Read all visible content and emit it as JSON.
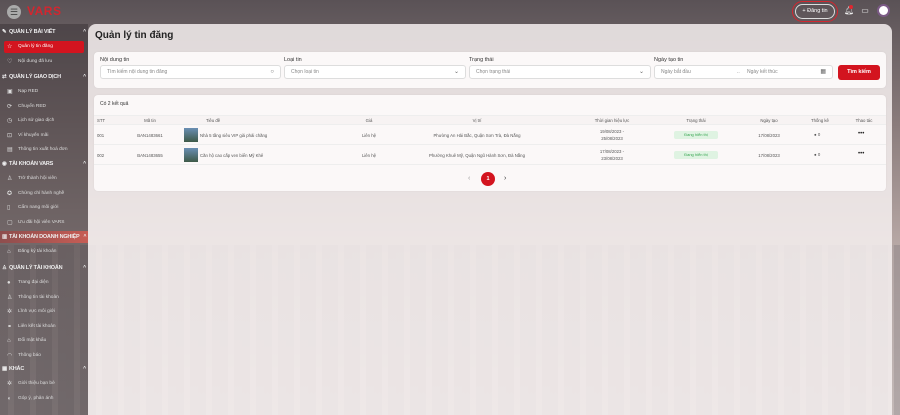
{
  "header": {
    "logo": "VARS",
    "post_button": "+ Đăng tin"
  },
  "sidebar": {
    "sections": [
      {
        "title": "QUẢN LÝ BÀI VIẾT",
        "icon": "edit-icon",
        "items": [
          {
            "label": "Quản lý tin đăng",
            "icon": "star-icon",
            "active": true
          },
          {
            "label": "Nội dung đã lưu",
            "icon": "heart-icon"
          }
        ]
      },
      {
        "title": "QUẢN LÝ GIAO DỊCH",
        "icon": "transaction-icon",
        "items": [
          {
            "label": "Nạp RED",
            "icon": "wallet-icon"
          },
          {
            "label": "Chuyển RED",
            "icon": "transfer-icon"
          },
          {
            "label": "Lịch sử giao dịch",
            "icon": "history-icon"
          },
          {
            "label": "Ví khuyến mãi",
            "icon": "gift-icon"
          },
          {
            "label": "Thông tin xuất hoá đơn",
            "icon": "invoice-icon"
          }
        ]
      },
      {
        "title": "TÀI KHOẢN VARS",
        "icon": "account-icon",
        "items": [
          {
            "label": "Trở thành hội viên",
            "icon": "member-icon"
          },
          {
            "label": "Chứng chỉ hành nghề",
            "icon": "certificate-icon"
          },
          {
            "label": "Cẩm nang môi giới",
            "icon": "book-icon"
          },
          {
            "label": "Ưu đãi hội viên VARS",
            "icon": "discount-icon"
          }
        ]
      },
      {
        "title": "TÀI KHOẢN DOANH NGHIỆP",
        "icon": "building-icon",
        "highlight": true,
        "items": [
          {
            "label": "Đăng ký tài khoản",
            "icon": "register-icon"
          }
        ]
      },
      {
        "title": "QUẢN LÝ TÀI KHOẢN",
        "icon": "user-icon",
        "items": [
          {
            "label": "Trang đại diện",
            "icon": "globe-icon"
          },
          {
            "label": "Thông tin tài khoản",
            "icon": "user-icon"
          },
          {
            "label": "Lĩnh vực môi giới",
            "icon": "settings-icon"
          },
          {
            "label": "Liên kết tài khoản",
            "icon": "link-icon"
          },
          {
            "label": "Đổi mật khẩu",
            "icon": "lock-icon"
          },
          {
            "label": "Thông báo",
            "icon": "bell-icon"
          }
        ]
      },
      {
        "title": "KHÁC",
        "icon": "grid-icon",
        "items": [
          {
            "label": "Giới thiệu bạn bè",
            "icon": "friends-icon"
          },
          {
            "label": "Góp ý, phản ánh",
            "icon": "headset-icon"
          }
        ]
      }
    ]
  },
  "main": {
    "title": "Quản lý tin đăng",
    "filters": {
      "content_label": "Nội dung tin",
      "content_placeholder": "Tìm kiếm nội dung tin đăng",
      "type_label": "Loại tin",
      "type_value": "Chọn loại tin",
      "status_label": "Trạng thái",
      "status_value": "Chọn trạng thái",
      "date_label": "Ngày tạo tin",
      "date_start": "Ngày bắt đầu",
      "date_sep": "..",
      "date_end": "Ngày kết thúc",
      "search_button": "Tìm kiếm"
    },
    "results": "Có 2 kết quả",
    "columns": [
      "STT",
      "Mã tin",
      "Tiêu đề",
      "Giá",
      "Vị trí",
      "Thời gian hiệu lực",
      "Trạng thái",
      "Ngày tạo",
      "Thống kê",
      "Thao tác"
    ],
    "rows": [
      {
        "stt": "001",
        "code": "BAN1483661",
        "title": "Nhà 5 tầng siêu VIP giá phải chăng",
        "price": "Liên hệ",
        "location": "Phường An Hải Bắc, Quận Sơn Trà, Đà Nẵng",
        "valid_from": "19/08/2023 -",
        "valid_to": "25/08/2023",
        "status": "Đang hiển thị",
        "created": "17/08/2023",
        "views": "0",
        "actions": "•••"
      },
      {
        "stt": "002",
        "code": "BAN1483655",
        "title": "Căn hộ cao cấp ven biển Mỹ Khê",
        "price": "Liên hệ",
        "location": "Phường Khuê Mỹ, Quận Ngũ Hành Sơn, Đà Nẵng",
        "valid_from": "17/08/2023 -",
        "valid_to": "23/08/2023",
        "status": "Đang hiển thị",
        "created": "17/08/2023",
        "views": "0",
        "actions": "•••"
      }
    ],
    "pagination": {
      "current": "1",
      "prev": "‹",
      "next": "›"
    }
  },
  "colors": {
    "accent": "#d3141f",
    "status_bg": "#dff3e2",
    "status_text": "#39a552"
  }
}
